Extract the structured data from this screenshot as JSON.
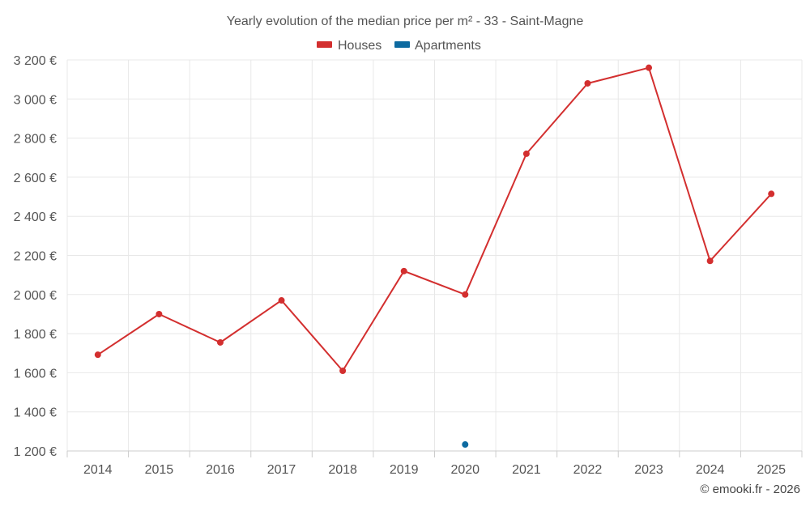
{
  "chart_data": {
    "type": "line",
    "title": "Yearly evolution of the median price per m² - 33 - Saint-Magne",
    "categories": [
      "2014",
      "2015",
      "2016",
      "2017",
      "2018",
      "2019",
      "2020",
      "2021",
      "2022",
      "2023",
      "2024",
      "2025"
    ],
    "series": [
      {
        "name": "Houses",
        "color": "#d32f2f",
        "values": [
          1692,
          1900,
          1755,
          1970,
          1610,
          2120,
          2000,
          2720,
          3080,
          3160,
          2172,
          2515
        ]
      },
      {
        "name": "Apartments",
        "color": "#0d6aa0",
        "values": [
          null,
          null,
          null,
          null,
          null,
          null,
          1233,
          null,
          null,
          null,
          null,
          null
        ]
      }
    ],
    "yticks": [
      "1 200 €",
      "1 400 €",
      "1 600 €",
      "1 800 €",
      "2 000 €",
      "2 200 €",
      "2 400 €",
      "2 600 €",
      "2 800 €",
      "3 000 €",
      "3 200 €"
    ],
    "ylim": [
      1200,
      3200
    ],
    "xlabel": "",
    "ylabel": "",
    "grid": true,
    "legend_position": "top-center"
  },
  "credits": "© emooki.fr - 2026"
}
